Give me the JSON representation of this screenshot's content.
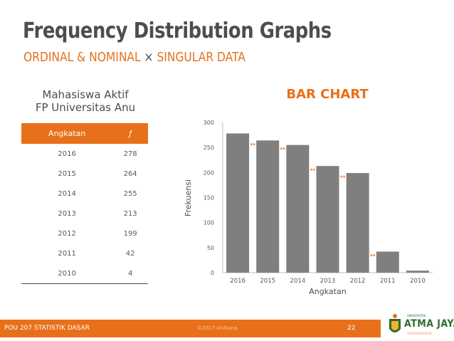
{
  "slide": {
    "title": "Frequency Distribution Graphs",
    "subtitle_a": "ORDINAL & NOMINAL",
    "subtitle_sep": "×",
    "subtitle_b": "SINGULAR DATA",
    "accent_color": "#e8701a",
    "text_color": "#4d4d4d"
  },
  "table": {
    "title_line1": "Mahasiswa Aktif",
    "title_line2": "FP Universitas Anu",
    "header_col1": "Angkatan",
    "header_col2": "ƒ",
    "rows": [
      {
        "angkatan": "2016",
        "f": "278"
      },
      {
        "angkatan": "2015",
        "f": "264"
      },
      {
        "angkatan": "2014",
        "f": "255"
      },
      {
        "angkatan": "2013",
        "f": "213"
      },
      {
        "angkatan": "2012",
        "f": "199"
      },
      {
        "angkatan": "2011",
        "f": "42"
      },
      {
        "angkatan": "2010",
        "f": "4"
      }
    ]
  },
  "chart_data": {
    "type": "bar",
    "title": "BAR CHART",
    "xlabel": "Angkatan",
    "ylabel": "Frekuensi",
    "categories": [
      "2016",
      "2015",
      "2014",
      "2013",
      "2012",
      "2011",
      "2010"
    ],
    "values": [
      278,
      264,
      255,
      213,
      199,
      42,
      4
    ],
    "ylim": [
      0,
      300
    ],
    "yticks": [
      "0",
      "50",
      "100",
      "150",
      "200",
      "250",
      "300"
    ],
    "bar_color": "#7f7f7f",
    "gap_marker": "↔",
    "gap_marker_color": "#e8701a",
    "gap_markers_after": [
      "2016",
      "2015",
      "2014",
      "2013",
      "2012"
    ],
    "grid": false
  },
  "footer": {
    "left": "POU 207 STATISTIK DASAR",
    "middle": "©2017 Ardhana",
    "page": "22",
    "logo_text": "ATMA JAYA",
    "logo_top": "UNIVERSITAS",
    "logo_bottom": "YOGYAKARTA"
  }
}
